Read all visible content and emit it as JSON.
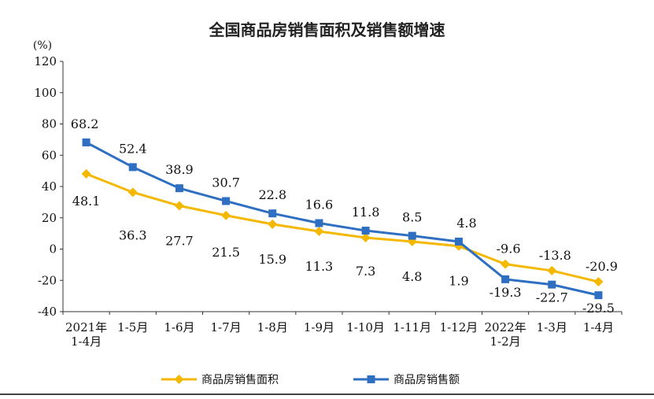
{
  "chart_data": {
    "type": "line",
    "title": "全国商品房销售面积及销售额增速",
    "ylabel": "(%)",
    "xlabel": "",
    "ylim": [
      -40,
      120
    ],
    "yticks": [
      120,
      100,
      80,
      60,
      40,
      20,
      0,
      -20,
      -40
    ],
    "categories": [
      [
        "2021年",
        "1-4月"
      ],
      [
        "1-5月"
      ],
      [
        "1-6月"
      ],
      [
        "1-7月"
      ],
      [
        "1-8月"
      ],
      [
        "1-9月"
      ],
      [
        "1-10月"
      ],
      [
        "1-11月"
      ],
      [
        "1-12月"
      ],
      [
        "2022年",
        "1-2月"
      ],
      [
        "1-3月"
      ],
      [
        "1-4月"
      ]
    ],
    "series": [
      {
        "name": "商品房销售面积",
        "color": "#F5B800",
        "marker": "diamond",
        "values": [
          48.1,
          36.3,
          27.7,
          21.5,
          15.9,
          11.3,
          7.3,
          4.8,
          1.9,
          -9.6,
          -13.8,
          -20.9
        ],
        "labels": [
          "48.1",
          "36.3",
          "27.7",
          "21.5",
          "15.9",
          "11.3",
          "7.3",
          "4.8",
          "1.9",
          "",
          "",
          ""
        ]
      },
      {
        "name": "商品房销售额",
        "color": "#2E6FC2",
        "marker": "square",
        "values": [
          68.2,
          52.4,
          38.9,
          30.7,
          22.8,
          16.6,
          11.8,
          8.5,
          4.8,
          -19.3,
          -22.7,
          -29.5
        ],
        "labels": [
          "68.2",
          "52.4",
          "38.9",
          "30.7",
          "22.8",
          "16.6",
          "11.8",
          "8.5",
          "4.8",
          "-19.3",
          "-22.7",
          "-29.5"
        ]
      }
    ],
    "extra_labels": [
      "-9.6",
      "-13.8",
      "-20.9"
    ],
    "legend_position": "bottom",
    "grid": false
  }
}
